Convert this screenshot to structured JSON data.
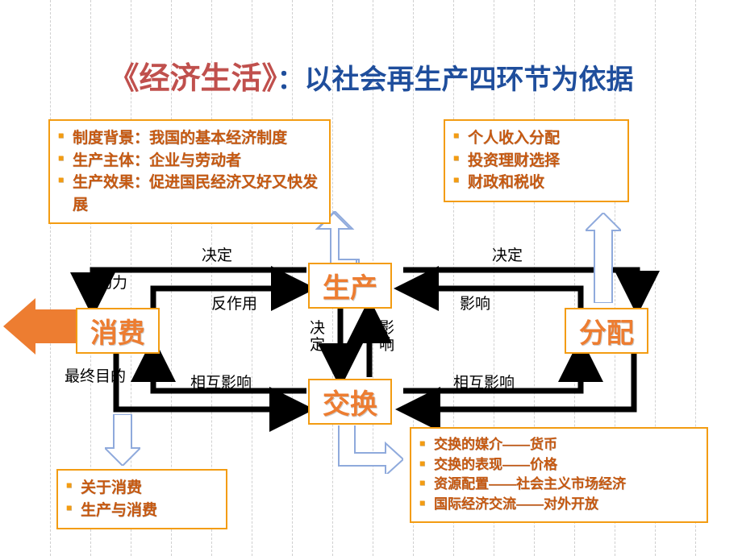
{
  "title": {
    "part1": "《经济生活》",
    "sep": "：",
    "part2": "以社会再生产四环节为依据"
  },
  "colors": {
    "title1": "#c0504d",
    "title2": "#1f4e9c",
    "node_border": "#f39c12",
    "node_text": "#ed7d31",
    "bullet_text": "#c65911",
    "bullet_marker": "#f39c12",
    "thick_arrow": "#000000",
    "light_arrow_fill": "#ffffff",
    "light_arrow_stroke": "#1f4e9c",
    "big_arrow": "#ed7d31",
    "background": "#ffffff",
    "grid": "#d0d0d0"
  },
  "nodes": {
    "production": "生产",
    "consumption": "消费",
    "exchange": "交换",
    "distribution": "分配"
  },
  "labels": {
    "decide": "决定",
    "reaction": "反作用",
    "influence": "影响",
    "mutual": "相互影响",
    "motive": "动力",
    "finalgoal": "最终目的"
  },
  "boxes": {
    "top_left": [
      "制度背景：我国的基本经济制度",
      "生产主体：企业与劳动者",
      "生产效果：促进国民经济又好又快发展"
    ],
    "top_right": [
      "个人收入分配",
      "投资理财选择",
      "财政和税收"
    ],
    "bottom_left": [
      "关于消费",
      "生产与消费"
    ],
    "bottom_right": [
      "交换的媒介——货币",
      "交换的表现——价格",
      "资源配置——社会主义市场经济",
      "国际经济交流——对外开放"
    ]
  },
  "layout": {
    "vlines_start": 62,
    "vlines_step": 50,
    "vlines_count": 17
  }
}
